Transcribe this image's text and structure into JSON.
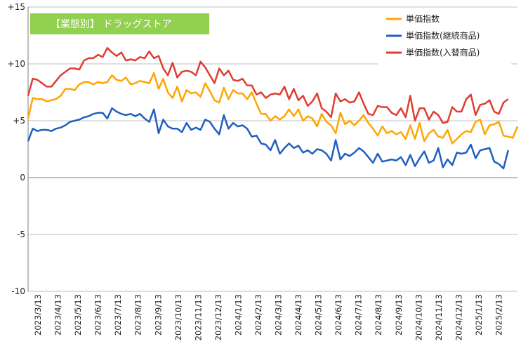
{
  "chart_data": {
    "type": "line",
    "title": "【業態別】 ドラッグストア",
    "title_bg": "#92d050",
    "ylim": [
      -10,
      15
    ],
    "y_ticks": [
      15,
      10,
      5,
      0,
      -5,
      -10
    ],
    "y_tick_labels": [
      "+15",
      "+10",
      "+5",
      "0",
      "-5",
      "-10"
    ],
    "grid": true,
    "legend_position": "top-right",
    "x_ticks": [
      "2023/3/13",
      "2023/4/13",
      "2023/5/13",
      "2023/6/13",
      "2023/7/13",
      "2023/8/13",
      "2023/9/13",
      "2023/10/13",
      "2023/11/13",
      "2023/12/13",
      "2024/1/13",
      "2024/2/13",
      "2024/3/13",
      "2024/4/13",
      "2024/5/13",
      "2024/6/13",
      "2024/7/13",
      "2024/8/13",
      "2024/9/13",
      "2024/10/13",
      "2024/11/13",
      "2024/12/13",
      "2025/1/13",
      "2025/2/13"
    ],
    "series": [
      {
        "name": "単価指数",
        "color": "#ffa500",
        "values": [
          5.2,
          7.0,
          6.9,
          6.9,
          6.7,
          6.8,
          6.9,
          7.2,
          7.8,
          7.8,
          7.7,
          8.2,
          8.4,
          8.4,
          8.2,
          8.4,
          8.3,
          8.4,
          9.0,
          8.6,
          8.5,
          8.8,
          8.2,
          8.3,
          8.5,
          8.4,
          8.3,
          9.2,
          7.8,
          8.7,
          7.5,
          7.0,
          8.0,
          6.7,
          7.7,
          7.4,
          7.5,
          7.1,
          8.3,
          7.6,
          6.8,
          6.6,
          7.9,
          6.9,
          7.7,
          7.4,
          7.4,
          6.9,
          7.5,
          6.5,
          5.6,
          5.6,
          5.0,
          5.4,
          5.1,
          5.4,
          6.0,
          5.4,
          6.0,
          5.0,
          5.4,
          5.2,
          4.5,
          5.6,
          4.9,
          4.6,
          3.9,
          5.7,
          4.7,
          5.0,
          4.6,
          5.0,
          5.5,
          4.8,
          4.3,
          3.7,
          4.5,
          3.9,
          4.1,
          3.8,
          4.0,
          3.4,
          4.6,
          3.4,
          4.8,
          3.2,
          3.9,
          4.2,
          3.6,
          3.5,
          4.2,
          3.0,
          3.4,
          3.8,
          4.1,
          4.0,
          4.9,
          5.1,
          3.8,
          4.6,
          4.7,
          4.9,
          3.7,
          3.6,
          3.5,
          4.5
        ],
        "values_note": ""
      },
      {
        "name": "単価指数(継続商品)",
        "color": "#1f5fbf",
        "values": [
          3.2,
          4.3,
          4.1,
          4.2,
          4.2,
          4.1,
          4.3,
          4.4,
          4.6,
          4.9,
          5.0,
          5.1,
          5.3,
          5.4,
          5.6,
          5.7,
          5.7,
          5.2,
          6.1,
          5.8,
          5.6,
          5.5,
          5.6,
          5.4,
          5.6,
          5.2,
          4.9,
          6.0,
          3.9,
          5.1,
          4.5,
          4.3,
          4.3,
          4.0,
          4.8,
          4.2,
          4.4,
          4.2,
          5.1,
          4.9,
          4.3,
          3.8,
          5.5,
          4.3,
          4.8,
          4.5,
          4.6,
          4.3,
          3.6,
          3.7,
          3.0,
          2.9,
          2.4,
          3.3,
          2.1,
          2.6,
          3.0,
          2.6,
          2.8,
          2.2,
          2.4,
          2.1,
          2.5,
          2.4,
          2.1,
          1.5,
          3.3,
          1.6,
          2.1,
          1.9,
          2.2,
          2.6,
          2.3,
          1.8,
          1.3,
          2.1,
          1.4,
          1.5,
          1.6,
          1.5,
          1.8,
          1.1,
          2.0,
          1.0,
          1.7,
          2.3,
          1.3,
          1.5,
          2.6,
          0.9,
          1.6,
          1.1,
          2.2,
          2.1,
          2.2,
          2.9,
          1.7,
          2.4,
          2.5,
          2.6,
          1.4,
          1.2,
          0.8,
          2.4
        ],
        "values_note": ""
      },
      {
        "name": "単価指数(入替商品)",
        "color": "#e03c31",
        "values": [
          7.2,
          8.7,
          8.6,
          8.3,
          8.0,
          8.0,
          8.5,
          9.0,
          9.3,
          9.6,
          9.6,
          9.5,
          10.3,
          10.5,
          10.5,
          10.8,
          10.6,
          11.4,
          11.0,
          10.7,
          11.0,
          10.3,
          10.4,
          10.3,
          10.6,
          10.5,
          11.1,
          10.5,
          10.7,
          9.6,
          9.0,
          10.1,
          8.8,
          9.3,
          9.4,
          9.3,
          9.0,
          10.2,
          9.7,
          9.0,
          8.3,
          9.6,
          9.0,
          9.4,
          8.6,
          8.5,
          8.7,
          8.1,
          8.1,
          7.3,
          7.5,
          7.0,
          7.3,
          7.4,
          7.3,
          8.0,
          6.9,
          7.8,
          6.8,
          7.2,
          6.3,
          6.7,
          7.4,
          6.1,
          5.8,
          5.3,
          7.4,
          6.7,
          6.9,
          6.6,
          6.7,
          7.5,
          6.5,
          5.6,
          5.5,
          6.3,
          6.2,
          6.2,
          5.7,
          5.5,
          6.1,
          5.3,
          7.2,
          5.0,
          6.1,
          6.1,
          5.1,
          5.8,
          5.5,
          4.8,
          4.9,
          6.2,
          5.8,
          5.8,
          6.9,
          7.3,
          5.5,
          6.4,
          6.5,
          6.8,
          5.8,
          5.6,
          6.6,
          6.9
        ]
      }
    ]
  }
}
